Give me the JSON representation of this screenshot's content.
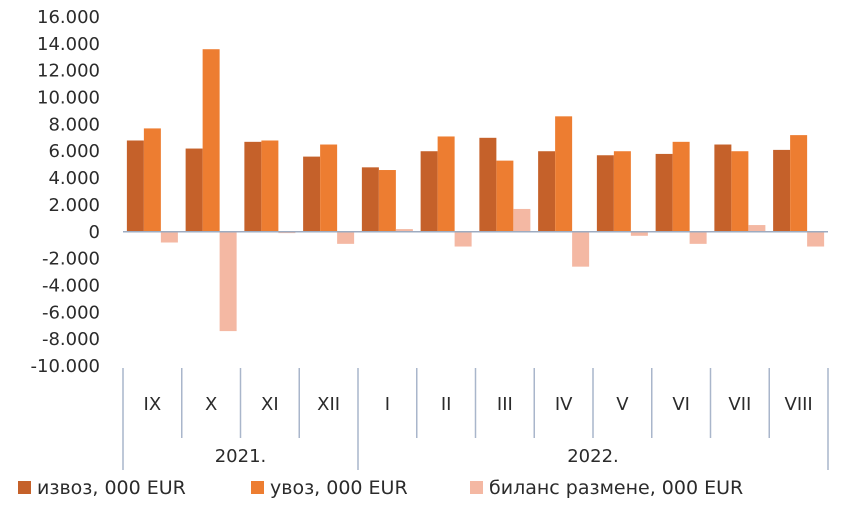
{
  "chart_data": {
    "type": "bar",
    "categories": [
      "IX",
      "X",
      "XI",
      "XII",
      "I",
      "II",
      "III",
      "IV",
      "V",
      "VI",
      "VII",
      "VIII"
    ],
    "groups": [
      {
        "label": "2021.",
        "categories": [
          "IX",
          "X",
          "XI",
          "XII"
        ]
      },
      {
        "label": "2022.",
        "categories": [
          "I",
          "II",
          "III",
          "IV",
          "V",
          "VI",
          "VII",
          "VIII"
        ]
      }
    ],
    "series": [
      {
        "name": "извоз, 000 EUR",
        "color": "#c5612a",
        "values": [
          6800,
          6200,
          6700,
          5600,
          4800,
          6000,
          7000,
          6000,
          5700,
          5800,
          6500,
          6100
        ]
      },
      {
        "name": "увоз, 000 EUR",
        "color": "#ed7d31",
        "values": [
          7700,
          13600,
          6800,
          6500,
          4600,
          7100,
          5300,
          8600,
          6000,
          6700,
          6000,
          7200
        ]
      },
      {
        "name": "биланс размене, 000 EUR",
        "color": "#f4b8a3",
        "values": [
          -800,
          -7400,
          -100,
          -900,
          200,
          -1100,
          1700,
          -2600,
          -300,
          -900,
          500,
          -1100
        ]
      }
    ],
    "yticks": [
      "16.000",
      "14.000",
      "12.000",
      "10.000",
      "8.000",
      "6.000",
      "4.000",
      "2.000",
      "0",
      "-2.000",
      "-4.000",
      "-6.000",
      "-8.000",
      "-10.000"
    ],
    "ylim": [
      -10000,
      16000
    ],
    "legend_position": "bottom",
    "grid": false
  }
}
